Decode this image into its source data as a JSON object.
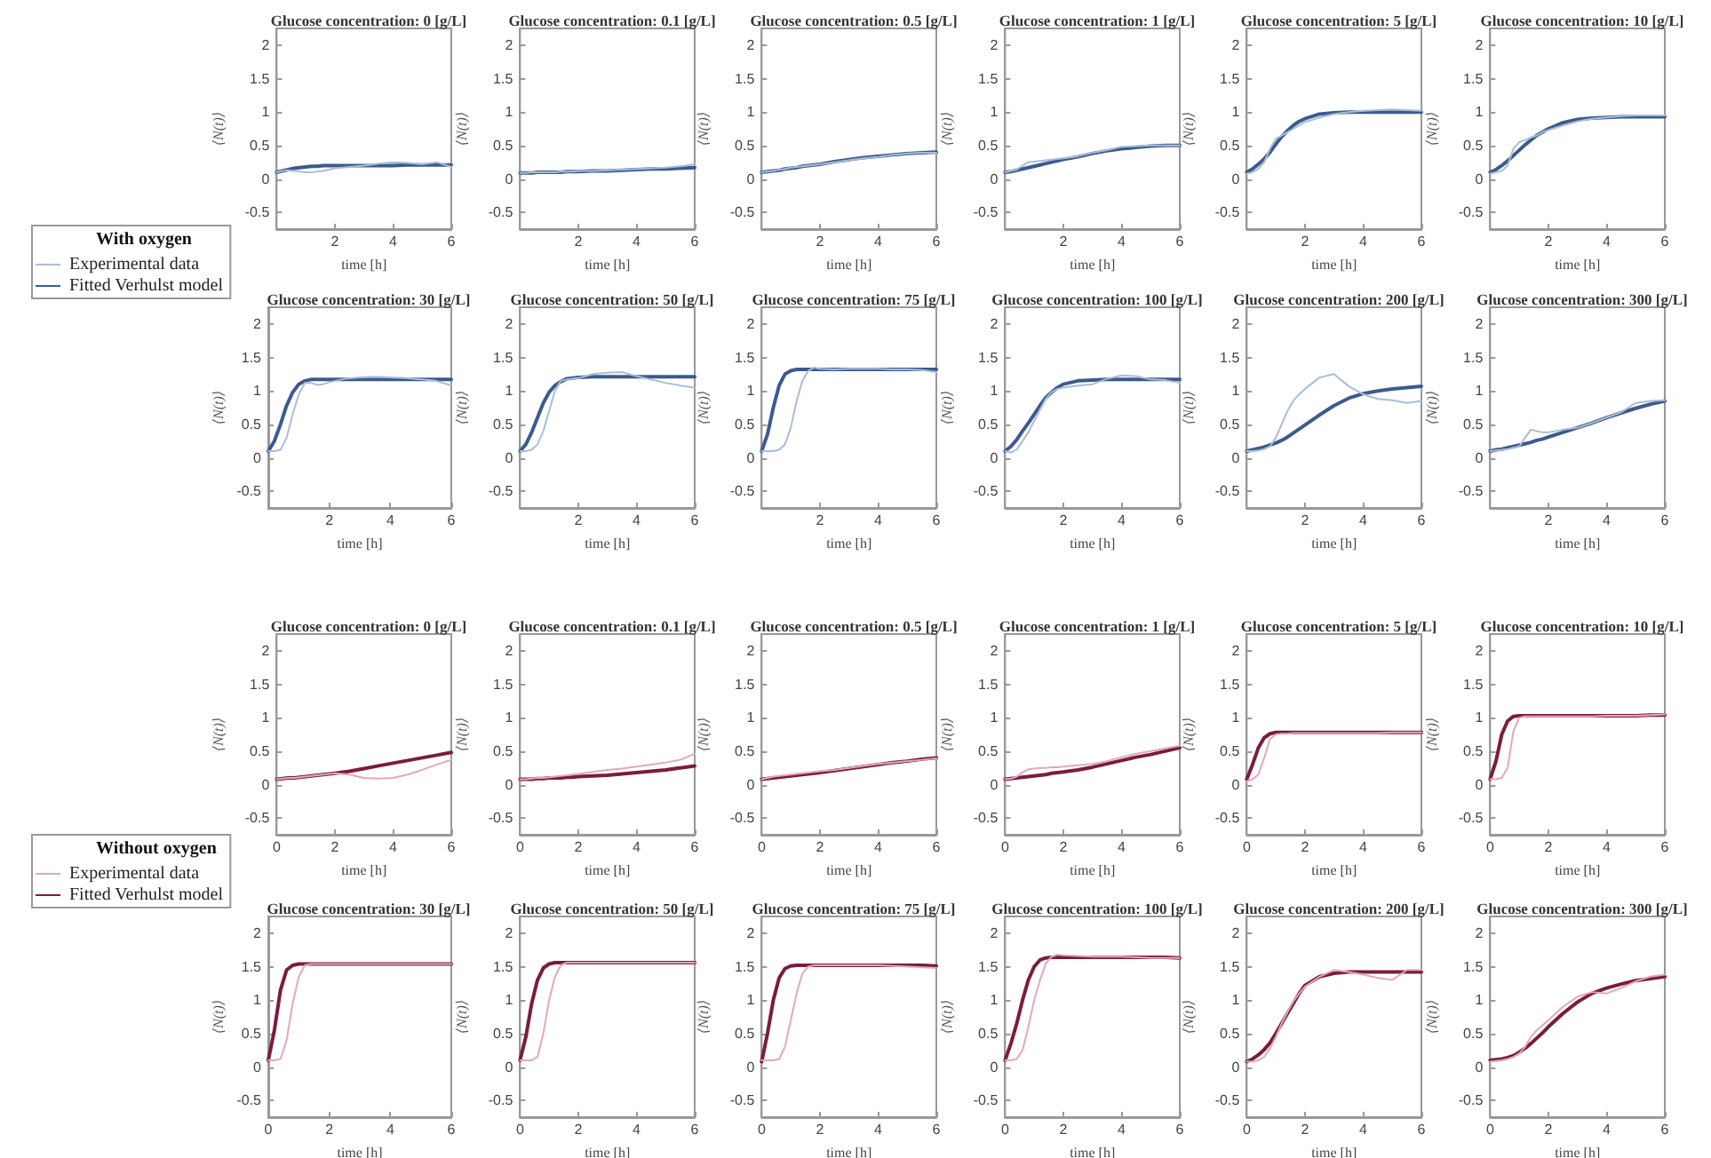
{
  "chart_data": [
    {
      "type": "line",
      "title": "Glucose concentration: 0 [g/L]",
      "xlabel": "time [h]",
      "ylabel": "⟨N(t)⟩",
      "x": [
        0,
        0.2,
        0.4,
        0.6,
        0.8,
        1,
        1.2,
        1.4,
        1.6,
        1.8,
        2,
        2.5,
        3,
        3.5,
        4,
        4.5,
        5,
        5.5,
        6
      ],
      "xlim": [
        0,
        6
      ],
      "xticks": [
        2,
        4,
        6
      ],
      "ylim": [
        -0.75,
        2.25
      ],
      "yticks": [
        -0.5,
        0,
        0.5,
        1,
        1.5,
        2
      ],
      "grid": false,
      "marker": "none",
      "series": [
        {
          "color": "#a9bdd8",
          "values": [
            0.1,
            0.12,
            0.13,
            0.12,
            0.11,
            0.1,
            0.1,
            0.11,
            0.12,
            0.14,
            0.16,
            0.18,
            0.2,
            0.23,
            0.25,
            0.24,
            0.22,
            0.25,
            0.18
          ]
        },
        {
          "color": "#3b5b8e",
          "values": [
            0.1,
            0.12,
            0.14,
            0.16,
            0.17,
            0.18,
            0.19,
            0.19,
            0.2,
            0.2,
            0.2,
            0.2,
            0.2,
            0.2,
            0.2,
            0.21,
            0.21,
            0.21,
            0.21
          ]
        }
      ]
    },
    {
      "type": "line",
      "title": "Glucose concentration: 0.1 [g/L]",
      "xlabel": "time [h]",
      "ylabel": "⟨N(t)⟩",
      "x": [
        0,
        0.2,
        0.4,
        0.6,
        0.8,
        1,
        1.2,
        1.4,
        1.6,
        1.8,
        2,
        2.5,
        3,
        3.5,
        4,
        4.5,
        5,
        5.5,
        6
      ],
      "xlim": [
        0,
        6
      ],
      "xticks": [
        2,
        4,
        6
      ],
      "ylim": [
        -0.75,
        2.25
      ],
      "yticks": [
        -0.5,
        0,
        0.5,
        1,
        1.5,
        2
      ],
      "grid": false,
      "marker": "none",
      "series": [
        {
          "color": "#a9bdd8",
          "values": [
            0.09,
            0.09,
            0.1,
            0.1,
            0.1,
            0.1,
            0.1,
            0.11,
            0.11,
            0.11,
            0.12,
            0.12,
            0.13,
            0.14,
            0.15,
            0.16,
            0.17,
            0.19,
            0.22
          ]
        },
        {
          "color": "#3b5b8e",
          "values": [
            0.09,
            0.09,
            0.09,
            0.1,
            0.1,
            0.1,
            0.1,
            0.1,
            0.11,
            0.11,
            0.11,
            0.12,
            0.12,
            0.13,
            0.14,
            0.15,
            0.15,
            0.16,
            0.17
          ]
        }
      ]
    },
    {
      "type": "line",
      "title": "Glucose concentration: 0.5 [g/L]",
      "xlabel": "time [h]",
      "ylabel": "⟨N(t)⟩",
      "x": [
        0,
        0.2,
        0.4,
        0.6,
        0.8,
        1,
        1.2,
        1.4,
        1.6,
        1.8,
        2,
        2.5,
        3,
        3.5,
        4,
        4.5,
        5,
        5.5,
        6
      ],
      "xlim": [
        0,
        6
      ],
      "xticks": [
        2,
        4,
        6
      ],
      "ylim": [
        -0.75,
        2.25
      ],
      "yticks": [
        -0.5,
        0,
        0.5,
        1,
        1.5,
        2
      ],
      "grid": false,
      "marker": "none",
      "series": [
        {
          "color": "#a9bdd8",
          "values": [
            0.1,
            0.11,
            0.12,
            0.14,
            0.15,
            0.17,
            0.18,
            0.19,
            0.2,
            0.21,
            0.22,
            0.25,
            0.28,
            0.31,
            0.33,
            0.36,
            0.38,
            0.39,
            0.39
          ]
        },
        {
          "color": "#3b5b8e",
          "values": [
            0.1,
            0.11,
            0.12,
            0.13,
            0.15,
            0.16,
            0.17,
            0.19,
            0.2,
            0.21,
            0.22,
            0.26,
            0.29,
            0.32,
            0.34,
            0.36,
            0.38,
            0.39,
            0.4
          ]
        }
      ]
    },
    {
      "type": "line",
      "title": "Glucose concentration: 1 [g/L]",
      "xlabel": "time [h]",
      "ylabel": "⟨N(t)⟩",
      "x": [
        0,
        0.2,
        0.4,
        0.6,
        0.8,
        1,
        1.2,
        1.4,
        1.6,
        1.8,
        2,
        2.5,
        3,
        3.5,
        4,
        4.5,
        5,
        5.5,
        6
      ],
      "xlim": [
        0,
        6
      ],
      "xticks": [
        2,
        4,
        6
      ],
      "ylim": [
        -0.75,
        2.25
      ],
      "yticks": [
        -0.5,
        0,
        0.5,
        1,
        1.5,
        2
      ],
      "grid": false,
      "marker": "none",
      "series": [
        {
          "color": "#a9bdd8",
          "values": [
            0.1,
            0.12,
            0.14,
            0.2,
            0.25,
            0.26,
            0.27,
            0.28,
            0.29,
            0.3,
            0.31,
            0.34,
            0.39,
            0.43,
            0.48,
            0.49,
            0.5,
            0.5,
            0.5
          ]
        },
        {
          "color": "#3b5b8e",
          "values": [
            0.1,
            0.11,
            0.13,
            0.15,
            0.17,
            0.19,
            0.21,
            0.23,
            0.25,
            0.27,
            0.29,
            0.33,
            0.38,
            0.42,
            0.45,
            0.47,
            0.49,
            0.5,
            0.5
          ]
        }
      ]
    },
    {
      "type": "line",
      "title": "Glucose concentration: 5 [g/L]",
      "xlabel": "time [h]",
      "ylabel": "⟨N(t)⟩",
      "x": [
        0,
        0.2,
        0.4,
        0.6,
        0.8,
        1,
        1.2,
        1.4,
        1.6,
        1.8,
        2,
        2.5,
        3,
        3.5,
        4,
        4.5,
        5,
        5.5,
        6
      ],
      "xlim": [
        0,
        6
      ],
      "xticks": [
        2,
        4,
        6
      ],
      "ylim": [
        -0.75,
        2.25
      ],
      "yticks": [
        -0.5,
        0,
        0.5,
        1,
        1.5,
        2
      ],
      "grid": false,
      "marker": "none",
      "series": [
        {
          "color": "#a9bdd8",
          "values": [
            0.08,
            0.1,
            0.15,
            0.25,
            0.45,
            0.6,
            0.65,
            0.7,
            0.75,
            0.8,
            0.85,
            0.92,
            0.97,
            1,
            1.02,
            1.03,
            1.04,
            1.03,
            1.02
          ]
        },
        {
          "color": "#3b5b8e",
          "values": [
            0.1,
            0.15,
            0.22,
            0.3,
            0.4,
            0.52,
            0.63,
            0.72,
            0.8,
            0.86,
            0.9,
            0.97,
            0.99,
            1,
            1,
            1,
            1,
            1,
            1
          ]
        }
      ]
    },
    {
      "type": "line",
      "title": "Glucose concentration: 10 [g/L]",
      "xlabel": "time [h]",
      "ylabel": "⟨N(t)⟩",
      "x": [
        0,
        0.2,
        0.4,
        0.6,
        0.8,
        1,
        1.2,
        1.4,
        1.6,
        1.8,
        2,
        2.5,
        3,
        3.5,
        4,
        4.5,
        5,
        5.5,
        6
      ],
      "xlim": [
        0,
        6
      ],
      "xticks": [
        2,
        4,
        6
      ],
      "ylim": [
        -0.75,
        2.25
      ],
      "yticks": [
        -0.5,
        0,
        0.5,
        1,
        1.5,
        2
      ],
      "grid": false,
      "marker": "none",
      "series": [
        {
          "color": "#a9bdd8",
          "values": [
            0.08,
            0.1,
            0.12,
            0.2,
            0.45,
            0.55,
            0.58,
            0.62,
            0.65,
            0.7,
            0.73,
            0.8,
            0.86,
            0.9,
            0.92,
            0.94,
            0.95,
            0.95,
            0.95
          ]
        },
        {
          "color": "#3b5b8e",
          "values": [
            0.1,
            0.14,
            0.2,
            0.27,
            0.35,
            0.43,
            0.51,
            0.58,
            0.65,
            0.7,
            0.75,
            0.84,
            0.89,
            0.91,
            0.92,
            0.93,
            0.93,
            0.93,
            0.93
          ]
        }
      ]
    },
    {
      "type": "line",
      "title": "Glucose concentration: 30 [g/L]",
      "xlabel": "time [h]",
      "ylabel": "⟨N(t)⟩",
      "x": [
        0,
        0.2,
        0.4,
        0.6,
        0.8,
        1,
        1.2,
        1.4,
        1.6,
        1.8,
        2,
        2.5,
        3,
        3.5,
        4,
        4.5,
        5,
        5.5,
        6
      ],
      "xlim": [
        0,
        6
      ],
      "xticks": [
        2,
        4,
        6
      ],
      "ylim": [
        -0.75,
        2.25
      ],
      "yticks": [
        -0.5,
        0,
        0.5,
        1,
        1.5,
        2
      ],
      "grid": false,
      "marker": "none",
      "legend": "top left",
      "legend_title": "With oxygen",
      "series": [
        {
          "name": "Experimental data",
          "color": "#a9bdd8",
          "values": [
            0.1,
            0.1,
            0.12,
            0.3,
            0.65,
            0.95,
            1.12,
            1.12,
            1.09,
            1.1,
            1.13,
            1.18,
            1.2,
            1.21,
            1.2,
            1.19,
            1.17,
            1.15,
            1.08
          ]
        },
        {
          "name": "Fitted Verhulst model",
          "color": "#3b5b8e",
          "values": [
            0.1,
            0.25,
            0.5,
            0.78,
            0.98,
            1.1,
            1.15,
            1.17,
            1.17,
            1.17,
            1.17,
            1.17,
            1.17,
            1.17,
            1.17,
            1.17,
            1.17,
            1.17,
            1.17
          ]
        }
      ]
    },
    {
      "type": "line",
      "title": "Glucose concentration: 50 [g/L]",
      "xlabel": "time [h]",
      "ylabel": "⟨N(t)⟩",
      "x": [
        0,
        0.2,
        0.4,
        0.6,
        0.8,
        1,
        1.2,
        1.4,
        1.6,
        1.8,
        2,
        2.5,
        3,
        3.5,
        4,
        4.5,
        5,
        5.5,
        6
      ],
      "xlim": [
        0,
        6
      ],
      "xticks": [
        2,
        4,
        6
      ],
      "ylim": [
        -0.75,
        2.25
      ],
      "yticks": [
        -0.5,
        0,
        0.5,
        1,
        1.5,
        2
      ],
      "grid": false,
      "marker": "none",
      "series": [
        {
          "color": "#a9bdd8",
          "values": [
            0.1,
            0.1,
            0.12,
            0.2,
            0.4,
            0.7,
            1,
            1.15,
            1.17,
            1.18,
            1.19,
            1.25,
            1.27,
            1.28,
            1.22,
            1.17,
            1.12,
            1.08,
            1.05
          ]
        },
        {
          "color": "#3b5b8e",
          "values": [
            0.1,
            0.2,
            0.38,
            0.6,
            0.82,
            0.98,
            1.08,
            1.14,
            1.18,
            1.19,
            1.2,
            1.21,
            1.21,
            1.21,
            1.21,
            1.21,
            1.21,
            1.21,
            1.21
          ]
        }
      ]
    },
    {
      "type": "line",
      "title": "Glucose concentration: 75 [g/L]",
      "xlabel": "time [h]",
      "ylabel": "⟨N(t)⟩",
      "x": [
        0,
        0.2,
        0.4,
        0.6,
        0.8,
        1,
        1.2,
        1.4,
        1.6,
        1.8,
        2,
        2.5,
        3,
        3.5,
        4,
        4.5,
        5,
        5.5,
        6
      ],
      "xlim": [
        0,
        6
      ],
      "xticks": [
        2,
        4,
        6
      ],
      "ylim": [
        -0.75,
        2.25
      ],
      "yticks": [
        -0.5,
        0,
        0.5,
        1,
        1.5,
        2
      ],
      "grid": false,
      "marker": "none",
      "series": [
        {
          "color": "#a9bdd8",
          "values": [
            0.1,
            0.1,
            0.1,
            0.12,
            0.2,
            0.45,
            0.85,
            1.15,
            1.3,
            1.35,
            1.33,
            1.32,
            1.33,
            1.33,
            1.33,
            1.32,
            1.32,
            1.31,
            1.28
          ]
        },
        {
          "color": "#3b5b8e",
          "values": [
            0.1,
            0.35,
            0.75,
            1.08,
            1.25,
            1.3,
            1.32,
            1.32,
            1.32,
            1.32,
            1.32,
            1.32,
            1.32,
            1.32,
            1.32,
            1.32,
            1.32,
            1.32,
            1.32
          ]
        }
      ]
    },
    {
      "type": "line",
      "title": "Glucose concentration: 100 [g/L]",
      "xlabel": "time [h]",
      "ylabel": "⟨N(t)⟩",
      "x": [
        0,
        0.2,
        0.4,
        0.6,
        0.8,
        1,
        1.2,
        1.4,
        1.6,
        1.8,
        2,
        2.5,
        3,
        3.5,
        4,
        4.5,
        5,
        5.5,
        6
      ],
      "xlim": [
        0,
        6
      ],
      "xticks": [
        2,
        4,
        6
      ],
      "ylim": [
        -0.75,
        2.25
      ],
      "yticks": [
        -0.5,
        0,
        0.5,
        1,
        1.5,
        2
      ],
      "grid": false,
      "marker": "none",
      "series": [
        {
          "color": "#a9bdd8",
          "values": [
            0.1,
            0.08,
            0.12,
            0.25,
            0.38,
            0.55,
            0.72,
            0.88,
            0.98,
            1.03,
            1.05,
            1.08,
            1.1,
            1.18,
            1.23,
            1.22,
            1.17,
            1.16,
            1.12
          ]
        },
        {
          "color": "#3b5b8e",
          "values": [
            0.1,
            0.17,
            0.27,
            0.4,
            0.52,
            0.65,
            0.78,
            0.9,
            0.98,
            1.05,
            1.1,
            1.15,
            1.16,
            1.17,
            1.17,
            1.17,
            1.17,
            1.17,
            1.17
          ]
        }
      ]
    },
    {
      "type": "line",
      "title": "Glucose concentration: 200 [g/L]",
      "xlabel": "time [h]",
      "ylabel": "⟨N(t)⟩",
      "x": [
        0,
        0.2,
        0.4,
        0.6,
        0.8,
        1,
        1.2,
        1.4,
        1.6,
        1.8,
        2,
        2.5,
        3,
        3.5,
        4,
        4.5,
        5,
        5.5,
        6
      ],
      "xlim": [
        0,
        6
      ],
      "xticks": [
        2,
        4,
        6
      ],
      "ylim": [
        -0.75,
        2.25
      ],
      "yticks": [
        -0.5,
        0,
        0.5,
        1,
        1.5,
        2
      ],
      "grid": false,
      "marker": "none",
      "series": [
        {
          "color": "#a9bdd8",
          "values": [
            0.1,
            0.1,
            0.11,
            0.13,
            0.17,
            0.3,
            0.5,
            0.7,
            0.85,
            0.95,
            1.03,
            1.2,
            1.25,
            1.07,
            0.95,
            0.88,
            0.86,
            0.82,
            0.85
          ]
        },
        {
          "color": "#3b5b8e",
          "values": [
            0.1,
            0.12,
            0.14,
            0.16,
            0.19,
            0.22,
            0.26,
            0.31,
            0.37,
            0.43,
            0.49,
            0.64,
            0.78,
            0.89,
            0.96,
            1,
            1.03,
            1.05,
            1.07
          ]
        }
      ]
    },
    {
      "type": "line",
      "title": "Glucose concentration: 300 [g/L]",
      "xlabel": "time [h]",
      "ylabel": "⟨N(t)⟩",
      "x": [
        0,
        0.2,
        0.4,
        0.6,
        0.8,
        1,
        1.2,
        1.4,
        1.6,
        1.8,
        2,
        2.5,
        3,
        3.5,
        4,
        4.5,
        5,
        5.5,
        6
      ],
      "xlim": [
        0,
        6
      ],
      "xticks": [
        2,
        4,
        6
      ],
      "ylim": [
        -0.75,
        2.25
      ],
      "yticks": [
        -0.5,
        0,
        0.5,
        1,
        1.5,
        2
      ],
      "grid": false,
      "marker": "none",
      "series": [
        {
          "color": "#a9bdd8",
          "values": [
            0.1,
            0.11,
            0.12,
            0.13,
            0.15,
            0.17,
            0.3,
            0.42,
            0.4,
            0.38,
            0.38,
            0.42,
            0.45,
            0.52,
            0.6,
            0.68,
            0.82,
            0.85,
            0.86
          ]
        },
        {
          "color": "#3b5b8e",
          "values": [
            0.1,
            0.12,
            0.13,
            0.15,
            0.17,
            0.19,
            0.21,
            0.23,
            0.26,
            0.28,
            0.31,
            0.38,
            0.45,
            0.52,
            0.6,
            0.67,
            0.74,
            0.8,
            0.85
          ]
        }
      ]
    },
    {
      "type": "line",
      "title": "Glucose concentration: 0 [g/L]",
      "xlabel": "time [h]",
      "ylabel": "⟨N(t)⟩",
      "x": [
        0,
        0.2,
        0.4,
        0.6,
        0.8,
        1,
        1.2,
        1.4,
        1.6,
        1.8,
        2,
        2.5,
        3,
        3.5,
        4,
        4.5,
        5,
        5.5,
        6
      ],
      "xlim": [
        0,
        6
      ],
      "xticks": [
        0,
        2,
        4,
        6
      ],
      "ylim": [
        -0.75,
        2.25
      ],
      "yticks": [
        -0.5,
        0,
        0.5,
        1,
        1.5,
        2
      ],
      "grid": false,
      "marker": "none",
      "series": [
        {
          "color": "#e2a9b9",
          "values": [
            0.08,
            0.09,
            0.1,
            0.1,
            0.11,
            0.12,
            0.13,
            0.14,
            0.15,
            0.16,
            0.17,
            0.15,
            0.1,
            0.09,
            0.1,
            0.15,
            0.22,
            0.3,
            0.37
          ]
        },
        {
          "color": "#7c1c3c",
          "values": [
            0.08,
            0.09,
            0.1,
            0.1,
            0.11,
            0.12,
            0.13,
            0.14,
            0.15,
            0.16,
            0.17,
            0.2,
            0.24,
            0.28,
            0.32,
            0.36,
            0.4,
            0.44,
            0.48
          ]
        }
      ]
    },
    {
      "type": "line",
      "title": "Glucose concentration: 0.1 [g/L]",
      "xlabel": "time [h]",
      "ylabel": "⟨N(t)⟩",
      "x": [
        0,
        0.2,
        0.4,
        0.6,
        0.8,
        1,
        1.2,
        1.4,
        1.6,
        1.8,
        2,
        2.5,
        3,
        3.5,
        4,
        4.5,
        5,
        5.5,
        6
      ],
      "xlim": [
        0,
        6
      ],
      "xticks": [
        0,
        2,
        4,
        6
      ],
      "ylim": [
        -0.75,
        2.25
      ],
      "yticks": [
        -0.5,
        0,
        0.5,
        1,
        1.5,
        2
      ],
      "grid": false,
      "marker": "none",
      "series": [
        {
          "color": "#e2a9b9",
          "values": [
            0.08,
            0.08,
            0.09,
            0.1,
            0.1,
            0.11,
            0.12,
            0.13,
            0.14,
            0.15,
            0.16,
            0.19,
            0.22,
            0.24,
            0.27,
            0.3,
            0.33,
            0.37,
            0.46
          ]
        },
        {
          "color": "#7c1c3c",
          "values": [
            0.08,
            0.08,
            0.08,
            0.09,
            0.09,
            0.1,
            0.1,
            0.1,
            0.11,
            0.11,
            0.12,
            0.13,
            0.14,
            0.16,
            0.18,
            0.2,
            0.22,
            0.25,
            0.28
          ]
        }
      ]
    },
    {
      "type": "line",
      "title": "Glucose concentration: 0.5 [g/L]",
      "xlabel": "time [h]",
      "ylabel": "⟨N(t)⟩",
      "x": [
        0,
        0.2,
        0.4,
        0.6,
        0.8,
        1,
        1.2,
        1.4,
        1.6,
        1.8,
        2,
        2.5,
        3,
        3.5,
        4,
        4.5,
        5,
        5.5,
        6
      ],
      "xlim": [
        0,
        6
      ],
      "xticks": [
        0,
        2,
        4,
        6
      ],
      "ylim": [
        -0.75,
        2.25
      ],
      "yticks": [
        -0.5,
        0,
        0.5,
        1,
        1.5,
        2
      ],
      "grid": false,
      "marker": "none",
      "series": [
        {
          "color": "#e2a9b9",
          "values": [
            0.08,
            0.1,
            0.12,
            0.13,
            0.14,
            0.15,
            0.16,
            0.17,
            0.18,
            0.19,
            0.2,
            0.22,
            0.25,
            0.28,
            0.31,
            0.33,
            0.35,
            0.37,
            0.39
          ]
        },
        {
          "color": "#7c1c3c",
          "values": [
            0.08,
            0.09,
            0.1,
            0.11,
            0.12,
            0.13,
            0.14,
            0.15,
            0.16,
            0.17,
            0.18,
            0.21,
            0.24,
            0.27,
            0.3,
            0.33,
            0.35,
            0.38,
            0.4
          ]
        }
      ]
    },
    {
      "type": "line",
      "title": "Glucose concentration: 1 [g/L]",
      "xlabel": "time [h]",
      "ylabel": "⟨N(t)⟩",
      "x": [
        0,
        0.2,
        0.4,
        0.6,
        0.8,
        1,
        1.2,
        1.4,
        1.6,
        1.8,
        2,
        2.5,
        3,
        3.5,
        4,
        4.5,
        5,
        5.5,
        6
      ],
      "xlim": [
        0,
        6
      ],
      "xticks": [
        0,
        2,
        4,
        6
      ],
      "ylim": [
        -0.75,
        2.25
      ],
      "yticks": [
        -0.5,
        0,
        0.5,
        1,
        1.5,
        2
      ],
      "grid": false,
      "marker": "none",
      "series": [
        {
          "color": "#e2a9b9",
          "values": [
            0.08,
            0.09,
            0.12,
            0.18,
            0.23,
            0.24,
            0.25,
            0.25,
            0.26,
            0.26,
            0.27,
            0.29,
            0.31,
            0.35,
            0.41,
            0.46,
            0.5,
            0.54,
            0.58
          ]
        },
        {
          "color": "#7c1c3c",
          "values": [
            0.08,
            0.09,
            0.1,
            0.11,
            0.12,
            0.13,
            0.14,
            0.15,
            0.17,
            0.18,
            0.19,
            0.22,
            0.26,
            0.31,
            0.36,
            0.41,
            0.45,
            0.5,
            0.55
          ]
        }
      ]
    },
    {
      "type": "line",
      "title": "Glucose concentration: 5 [g/L]",
      "xlabel": "time [h]",
      "ylabel": "⟨N(t)⟩",
      "x": [
        0,
        0.2,
        0.4,
        0.6,
        0.8,
        1,
        1.2,
        1.4,
        1.6,
        1.8,
        2,
        2.5,
        3,
        3.5,
        4,
        4.5,
        5,
        5.5,
        6
      ],
      "xlim": [
        0,
        6
      ],
      "xticks": [
        0,
        2,
        4,
        6
      ],
      "ylim": [
        -0.75,
        2.25
      ],
      "yticks": [
        -0.5,
        0,
        0.5,
        1,
        1.5,
        2
      ],
      "grid": false,
      "marker": "none",
      "series": [
        {
          "color": "#e2a9b9",
          "values": [
            0.05,
            0.08,
            0.15,
            0.4,
            0.68,
            0.75,
            0.76,
            0.76,
            0.77,
            0.77,
            0.77,
            0.77,
            0.77,
            0.77,
            0.77,
            0.77,
            0.78,
            0.78,
            0.78
          ]
        },
        {
          "color": "#7c1c3c",
          "values": [
            0.08,
            0.3,
            0.55,
            0.7,
            0.76,
            0.78,
            0.78,
            0.78,
            0.78,
            0.78,
            0.78,
            0.78,
            0.78,
            0.78,
            0.78,
            0.78,
            0.78,
            0.78,
            0.78
          ]
        }
      ]
    },
    {
      "type": "line",
      "title": "Glucose concentration: 10 [g/L]",
      "xlabel": "time [h]",
      "ylabel": "⟨N(t)⟩",
      "x": [
        0,
        0.2,
        0.4,
        0.6,
        0.8,
        1,
        1.2,
        1.4,
        1.6,
        1.8,
        2,
        2.5,
        3,
        3.5,
        4,
        4.5,
        5,
        5.5,
        6
      ],
      "xlim": [
        0,
        6
      ],
      "xticks": [
        0,
        2,
        4,
        6
      ],
      "ylim": [
        -0.75,
        2.25
      ],
      "yticks": [
        -0.5,
        0,
        0.5,
        1,
        1.5,
        2
      ],
      "grid": false,
      "marker": "none",
      "series": [
        {
          "color": "#e2a9b9",
          "values": [
            0.08,
            0.08,
            0.1,
            0.25,
            0.8,
            1,
            1.02,
            1.02,
            1.02,
            1.02,
            1.02,
            1.02,
            1.02,
            1.02,
            1.03,
            1.03,
            1.03,
            1.04,
            1.05
          ]
        },
        {
          "color": "#7c1c3c",
          "values": [
            0.08,
            0.35,
            0.75,
            0.95,
            1.02,
            1.03,
            1.03,
            1.03,
            1.03,
            1.03,
            1.03,
            1.03,
            1.03,
            1.03,
            1.03,
            1.03,
            1.03,
            1.04,
            1.04
          ]
        }
      ]
    },
    {
      "type": "line",
      "title": "Glucose concentration: 30 [g/L]",
      "xlabel": "time [h]",
      "ylabel": "⟨N(t)⟩",
      "x": [
        0,
        0.2,
        0.4,
        0.6,
        0.8,
        1,
        1.2,
        1.4,
        1.6,
        1.8,
        2,
        2.5,
        3,
        3.5,
        4,
        4.5,
        5,
        5.5,
        6
      ],
      "xlim": [
        0,
        6
      ],
      "xticks": [
        0,
        2,
        4,
        6
      ],
      "ylim": [
        -0.75,
        2.25
      ],
      "yticks": [
        -0.5,
        0,
        0.5,
        1,
        1.5,
        2
      ],
      "grid": false,
      "marker": "none",
      "legend": "top left",
      "legend_title": "Without oxygen",
      "series": [
        {
          "name": "Experimental data",
          "color": "#e2a9b9",
          "values": [
            0.1,
            0.1,
            0.12,
            0.4,
            0.95,
            1.35,
            1.52,
            1.54,
            1.54,
            1.54,
            1.54,
            1.54,
            1.54,
            1.54,
            1.54,
            1.54,
            1.54,
            1.54,
            1.54
          ]
        },
        {
          "name": "Fitted Verhulst model",
          "color": "#7c1c3c",
          "values": [
            0.1,
            0.55,
            1.15,
            1.45,
            1.52,
            1.54,
            1.54,
            1.54,
            1.54,
            1.54,
            1.54,
            1.54,
            1.54,
            1.54,
            1.54,
            1.54,
            1.54,
            1.54,
            1.54
          ]
        }
      ]
    },
    {
      "type": "line",
      "title": "Glucose concentration: 50 [g/L]",
      "xlabel": "time [h]",
      "ylabel": "⟨N(t)⟩",
      "x": [
        0,
        0.2,
        0.4,
        0.6,
        0.8,
        1,
        1.2,
        1.4,
        1.6,
        1.8,
        2,
        2.5,
        3,
        3.5,
        4,
        4.5,
        5,
        5.5,
        6
      ],
      "xlim": [
        0,
        6
      ],
      "xticks": [
        0,
        2,
        4,
        6
      ],
      "ylim": [
        -0.75,
        2.25
      ],
      "yticks": [
        -0.5,
        0,
        0.5,
        1,
        1.5,
        2
      ],
      "grid": false,
      "marker": "none",
      "series": [
        {
          "color": "#e2a9b9",
          "values": [
            0.1,
            0.1,
            0.1,
            0.15,
            0.5,
            1,
            1.35,
            1.52,
            1.56,
            1.56,
            1.56,
            1.56,
            1.56,
            1.56,
            1.56,
            1.56,
            1.56,
            1.56,
            1.56
          ]
        },
        {
          "color": "#7c1c3c",
          "values": [
            0.1,
            0.45,
            0.95,
            1.3,
            1.48,
            1.54,
            1.56,
            1.56,
            1.56,
            1.56,
            1.56,
            1.56,
            1.56,
            1.56,
            1.56,
            1.56,
            1.56,
            1.56,
            1.56
          ]
        }
      ]
    },
    {
      "type": "line",
      "title": "Glucose concentration: 75 [g/L]",
      "xlabel": "time [h]",
      "ylabel": "⟨N(t)⟩",
      "x": [
        0,
        0.2,
        0.4,
        0.6,
        0.8,
        1,
        1.2,
        1.4,
        1.6,
        1.8,
        2,
        2.5,
        3,
        3.5,
        4,
        4.5,
        5,
        5.5,
        6
      ],
      "xlim": [
        0,
        6
      ],
      "xticks": [
        0,
        2,
        4,
        6
      ],
      "ylim": [
        -0.75,
        2.25
      ],
      "yticks": [
        -0.5,
        0,
        0.5,
        1,
        1.5,
        2
      ],
      "grid": false,
      "marker": "none",
      "series": [
        {
          "color": "#e2a9b9",
          "values": [
            0.1,
            0.1,
            0.1,
            0.12,
            0.3,
            0.7,
            1.1,
            1.4,
            1.5,
            1.52,
            1.52,
            1.52,
            1.52,
            1.52,
            1.52,
            1.51,
            1.5,
            1.49,
            1.48
          ]
        },
        {
          "color": "#7c1c3c",
          "values": [
            0.08,
            0.5,
            1,
            1.33,
            1.47,
            1.51,
            1.52,
            1.52,
            1.52,
            1.52,
            1.52,
            1.52,
            1.52,
            1.52,
            1.52,
            1.52,
            1.52,
            1.52,
            1.51
          ]
        }
      ]
    },
    {
      "type": "line",
      "title": "Glucose concentration: 100 [g/L]",
      "xlabel": "time [h]",
      "ylabel": "⟨N(t)⟩",
      "x": [
        0,
        0.2,
        0.4,
        0.6,
        0.8,
        1,
        1.2,
        1.4,
        1.6,
        1.8,
        2,
        2.5,
        3,
        3.5,
        4,
        4.5,
        5,
        5.5,
        6
      ],
      "xlim": [
        0,
        6
      ],
      "xticks": [
        0,
        2,
        4,
        6
      ],
      "ylim": [
        -0.75,
        2.25
      ],
      "yticks": [
        -0.5,
        0,
        0.5,
        1,
        1.5,
        2
      ],
      "grid": false,
      "marker": "none",
      "series": [
        {
          "color": "#e2a9b9",
          "values": [
            0.1,
            0.1,
            0.12,
            0.25,
            0.6,
            1,
            1.3,
            1.55,
            1.65,
            1.68,
            1.67,
            1.66,
            1.65,
            1.65,
            1.65,
            1.64,
            1.63,
            1.63,
            1.63
          ]
        },
        {
          "color": "#7c1c3c",
          "values": [
            0.1,
            0.35,
            0.65,
            1,
            1.3,
            1.5,
            1.6,
            1.63,
            1.64,
            1.64,
            1.64,
            1.64,
            1.64,
            1.64,
            1.64,
            1.64,
            1.64,
            1.64,
            1.63
          ]
        }
      ]
    },
    {
      "type": "line",
      "title": "Glucose concentration: 200 [g/L]",
      "xlabel": "time [h]",
      "ylabel": "⟨N(t)⟩",
      "x": [
        0,
        0.2,
        0.4,
        0.6,
        0.8,
        1,
        1.2,
        1.4,
        1.6,
        1.8,
        2,
        2.5,
        3,
        3.5,
        4,
        4.5,
        5,
        5.5,
        6
      ],
      "xlim": [
        0,
        6
      ],
      "xticks": [
        0,
        2,
        4,
        6
      ],
      "ylim": [
        -0.75,
        2.25
      ],
      "yticks": [
        -0.5,
        0,
        0.5,
        1,
        1.5,
        2
      ],
      "grid": false,
      "marker": "none",
      "series": [
        {
          "color": "#e2a9b9",
          "values": [
            0.08,
            0.08,
            0.1,
            0.15,
            0.28,
            0.45,
            0.65,
            0.82,
            0.98,
            1.1,
            1.2,
            1.35,
            1.45,
            1.42,
            1.38,
            1.33,
            1.3,
            1.45,
            1.45
          ]
        },
        {
          "color": "#7c1c3c",
          "values": [
            0.08,
            0.12,
            0.18,
            0.26,
            0.36,
            0.5,
            0.65,
            0.8,
            0.95,
            1.1,
            1.22,
            1.35,
            1.4,
            1.42,
            1.42,
            1.42,
            1.42,
            1.42,
            1.42
          ]
        }
      ]
    },
    {
      "type": "line",
      "title": "Glucose concentration: 300 [g/L]",
      "xlabel": "time [h]",
      "ylabel": "⟨N(t)⟩",
      "x": [
        0,
        0.2,
        0.4,
        0.6,
        0.8,
        1,
        1.2,
        1.4,
        1.6,
        1.8,
        2,
        2.5,
        3,
        3.5,
        4,
        4.5,
        5,
        5.5,
        6
      ],
      "xlim": [
        0,
        6
      ],
      "xticks": [
        0,
        2,
        4,
        6
      ],
      "ylim": [
        -0.75,
        2.25
      ],
      "yticks": [
        -0.5,
        0,
        0.5,
        1,
        1.5,
        2
      ],
      "grid": false,
      "marker": "none",
      "series": [
        {
          "color": "#e2a9b9",
          "values": [
            0.08,
            0.09,
            0.1,
            0.12,
            0.15,
            0.2,
            0.3,
            0.45,
            0.55,
            0.62,
            0.7,
            0.9,
            1.05,
            1.12,
            1.1,
            1.18,
            1.28,
            1.35,
            1.38
          ]
        },
        {
          "color": "#7c1c3c",
          "values": [
            0.1,
            0.11,
            0.12,
            0.14,
            0.17,
            0.22,
            0.28,
            0.35,
            0.43,
            0.51,
            0.6,
            0.8,
            0.97,
            1.1,
            1.18,
            1.24,
            1.29,
            1.32,
            1.35
          ]
        }
      ]
    }
  ]
}
